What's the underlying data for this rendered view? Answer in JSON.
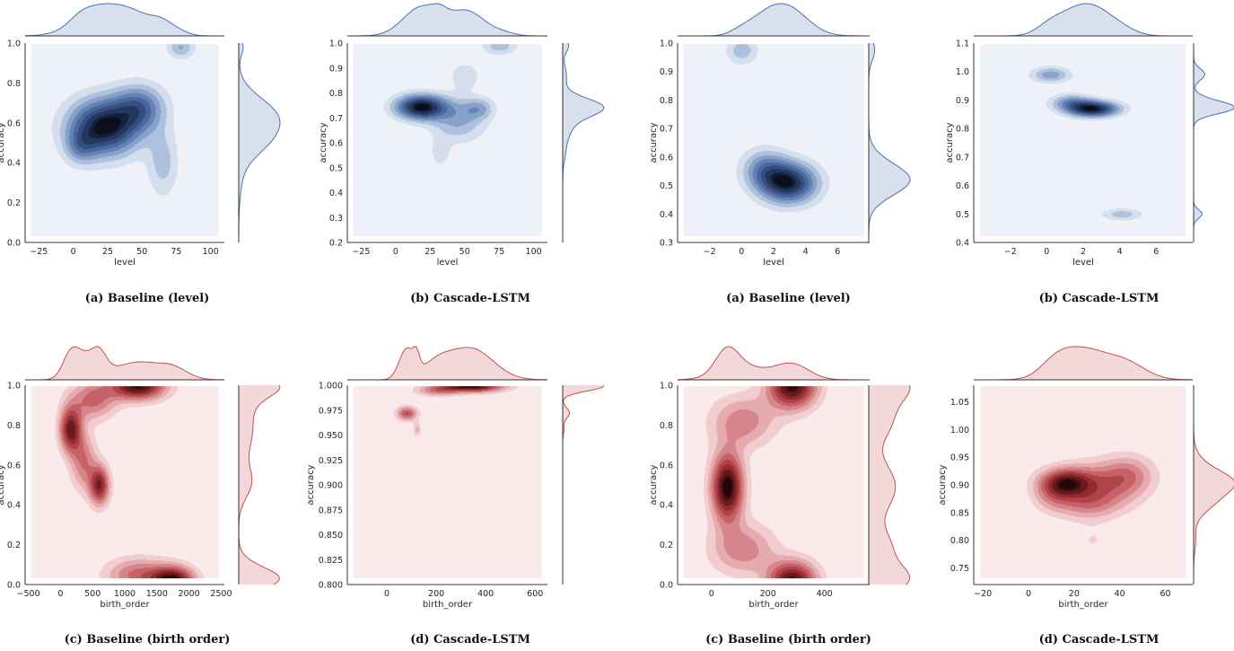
{
  "chart_data": [
    {
      "id": "p1",
      "type": "kde-joint",
      "caption": "(a) Baseline (level)",
      "theme": "blue",
      "xlabel": "level",
      "ylabel": "accuracy",
      "xlim": [
        -35,
        110
      ],
      "ylim": [
        0,
        1.0
      ],
      "xticks": [
        -25,
        0,
        25,
        50,
        75,
        100
      ],
      "yticks": [
        0.0,
        0.2,
        0.4,
        0.6,
        0.8,
        1.0
      ],
      "ydec": 1,
      "blobs": [
        {
          "x": 22,
          "y": 0.58,
          "sx": 18,
          "sy": 0.1,
          "w": 1
        },
        {
          "x": 48,
          "y": 0.68,
          "sx": 13,
          "sy": 0.08,
          "w": 0.55
        },
        {
          "x": 65,
          "y": 0.4,
          "sx": 8,
          "sy": 0.12,
          "w": 0.28
        },
        {
          "x": 78,
          "y": 0.98,
          "sx": 7,
          "sy": 0.04,
          "w": 0.35
        },
        {
          "x": 5,
          "y": 0.48,
          "sx": 8,
          "sy": 0.06,
          "w": 0.3
        }
      ]
    },
    {
      "id": "p2",
      "type": "kde-joint",
      "caption": "(b) Cascade-LSTM",
      "theme": "blue",
      "xlabel": "level",
      "ylabel": "accuracy",
      "xlim": [
        -35,
        110
      ],
      "ylim": [
        0.2,
        1.0
      ],
      "xticks": [
        -25,
        0,
        25,
        50,
        75,
        100
      ],
      "yticks": [
        0.2,
        0.3,
        0.4,
        0.5,
        0.6,
        0.7,
        0.8,
        0.9,
        1.0
      ],
      "ydec": 1,
      "blobs": [
        {
          "x": 18,
          "y": 0.745,
          "sx": 13,
          "sy": 0.035,
          "w": 1
        },
        {
          "x": 45,
          "y": 0.69,
          "sx": 14,
          "sy": 0.06,
          "w": 0.35
        },
        {
          "x": 60,
          "y": 0.74,
          "sx": 8,
          "sy": 0.03,
          "w": 0.3
        },
        {
          "x": 75,
          "y": 0.99,
          "sx": 9,
          "sy": 0.025,
          "w": 0.3
        },
        {
          "x": 50,
          "y": 0.87,
          "sx": 8,
          "sy": 0.04,
          "w": 0.2
        },
        {
          "x": 32,
          "y": 0.56,
          "sx": 5,
          "sy": 0.04,
          "w": 0.18
        }
      ]
    },
    {
      "id": "p3",
      "type": "kde-joint",
      "caption": "(a) Baseline (level)",
      "theme": "blue",
      "xlabel": "level",
      "ylabel": "accuracy",
      "xlim": [
        -4,
        8
      ],
      "ylim": [
        0.3,
        1.0
      ],
      "xticks": [
        -2,
        0,
        2,
        4,
        6
      ],
      "yticks": [
        0.3,
        0.4,
        0.5,
        0.6,
        0.7,
        0.8,
        0.9,
        1.0
      ],
      "ydec": 1,
      "blobs": [
        {
          "x": 2.9,
          "y": 0.51,
          "sx": 1.25,
          "sy": 0.05,
          "w": 1
        },
        {
          "x": 1.4,
          "y": 0.56,
          "sx": 1.0,
          "sy": 0.05,
          "w": 0.45
        },
        {
          "x": 0.0,
          "y": 0.975,
          "sx": 0.7,
          "sy": 0.035,
          "w": 0.32
        }
      ]
    },
    {
      "id": "p4",
      "type": "kde-joint",
      "caption": "(b) Cascade-LSTM",
      "theme": "blue",
      "xlabel": "level",
      "ylabel": "accuracy",
      "xlim": [
        -4,
        8
      ],
      "ylim": [
        0.4,
        1.1
      ],
      "xticks": [
        -2,
        0,
        2,
        4,
        6
      ],
      "yticks": [
        0.4,
        0.5,
        0.6,
        0.7,
        0.8,
        0.9,
        1.0,
        1.1
      ],
      "ydec": 1,
      "blobs": [
        {
          "x": 2.5,
          "y": 0.87,
          "sx": 1.0,
          "sy": 0.02,
          "w": 1
        },
        {
          "x": 1.3,
          "y": 0.895,
          "sx": 0.8,
          "sy": 0.02,
          "w": 0.4
        },
        {
          "x": 0.2,
          "y": 0.99,
          "sx": 0.75,
          "sy": 0.02,
          "w": 0.42
        },
        {
          "x": 4.1,
          "y": 0.5,
          "sx": 0.8,
          "sy": 0.015,
          "w": 0.3
        }
      ]
    },
    {
      "id": "p5",
      "type": "kde-joint",
      "caption": "(c) Baseline (birth order)",
      "theme": "red",
      "xlabel": "birth_order",
      "ylabel": "accuracy",
      "xlim": [
        -550,
        2550
      ],
      "ylim": [
        0,
        1.0
      ],
      "xticks": [
        -500,
        0,
        500,
        1000,
        1500,
        2000,
        2500
      ],
      "yticks": [
        0.0,
        0.2,
        0.4,
        0.6,
        0.8,
        1.0
      ],
      "ydec": 1,
      "blobs": [
        {
          "x": 1200,
          "y": 1.0,
          "sx": 300,
          "sy": 0.05,
          "w": 1
        },
        {
          "x": 1750,
          "y": 0.02,
          "sx": 230,
          "sy": 0.05,
          "w": 0.95
        },
        {
          "x": 150,
          "y": 0.78,
          "sx": 120,
          "sy": 0.08,
          "w": 0.85
        },
        {
          "x": 600,
          "y": 0.5,
          "sx": 110,
          "sy": 0.07,
          "w": 0.8
        },
        {
          "x": 500,
          "y": 0.93,
          "sx": 250,
          "sy": 0.07,
          "w": 0.5
        },
        {
          "x": 1200,
          "y": 0.05,
          "sx": 350,
          "sy": 0.06,
          "w": 0.5
        },
        {
          "x": 350,
          "y": 0.62,
          "sx": 140,
          "sy": 0.1,
          "w": 0.45
        }
      ]
    },
    {
      "id": "p6",
      "type": "kde-joint",
      "caption": "(d) Cascade-LSTM",
      "theme": "red",
      "xlabel": "birth_order",
      "ylabel": "accuracy",
      "xlim": [
        -160,
        650
      ],
      "ylim": [
        0.8,
        1.0
      ],
      "xticks": [
        0,
        200,
        400,
        600
      ],
      "yticks": [
        0.8,
        0.825,
        0.85,
        0.875,
        0.9,
        0.925,
        0.95,
        0.975,
        1.0
      ],
      "ydec": 3,
      "blobs": [
        {
          "x": 340,
          "y": 1.0,
          "sx": 90,
          "sy": 0.0045,
          "w": 1
        },
        {
          "x": 80,
          "y": 0.972,
          "sx": 30,
          "sy": 0.005,
          "w": 0.55
        },
        {
          "x": 120,
          "y": 0.956,
          "sx": 12,
          "sy": 0.005,
          "w": 0.25
        },
        {
          "x": 200,
          "y": 0.995,
          "sx": 60,
          "sy": 0.004,
          "w": 0.35
        }
      ]
    },
    {
      "id": "p7",
      "type": "kde-joint",
      "caption": "(c) Baseline (birth order)",
      "theme": "red",
      "xlabel": "birth_order",
      "ylabel": "accuracy",
      "xlim": [
        -120,
        560
      ],
      "ylim": [
        0,
        1.0
      ],
      "xticks": [
        0,
        200,
        400
      ],
      "yticks": [
        0.0,
        0.2,
        0.4,
        0.6,
        0.8,
        1.0
      ],
      "ydec": 1,
      "blobs": [
        {
          "x": 55,
          "y": 0.49,
          "sx": 40,
          "sy": 0.12,
          "w": 1
        },
        {
          "x": 285,
          "y": 1.0,
          "sx": 60,
          "sy": 0.08,
          "w": 0.95
        },
        {
          "x": 285,
          "y": 0.02,
          "sx": 60,
          "sy": 0.07,
          "w": 0.9
        },
        {
          "x": 110,
          "y": 0.82,
          "sx": 80,
          "sy": 0.09,
          "w": 0.4
        },
        {
          "x": 110,
          "y": 0.18,
          "sx": 80,
          "sy": 0.09,
          "w": 0.4
        }
      ]
    },
    {
      "id": "p8",
      "type": "kde-joint",
      "caption": "(d) Cascade-LSTM",
      "theme": "red",
      "xlabel": "birth_order",
      "ylabel": "accuracy",
      "xlim": [
        -24,
        72
      ],
      "ylim": [
        0.72,
        1.08
      ],
      "xticks": [
        -20,
        0,
        20,
        40,
        60
      ],
      "yticks": [
        0.75,
        0.8,
        0.85,
        0.9,
        0.95,
        1.0,
        1.05
      ],
      "ydec": 2,
      "blobs": [
        {
          "x": 16,
          "y": 0.905,
          "sx": 8,
          "sy": 0.018,
          "w": 1
        },
        {
          "x": 32,
          "y": 0.9,
          "sx": 12,
          "sy": 0.03,
          "w": 0.55
        },
        {
          "x": 44,
          "y": 0.92,
          "sx": 8,
          "sy": 0.025,
          "w": 0.4
        },
        {
          "x": 25,
          "y": 0.865,
          "sx": 10,
          "sy": 0.02,
          "w": 0.4
        },
        {
          "x": 10,
          "y": 0.88,
          "sx": 6,
          "sy": 0.02,
          "w": 0.3
        },
        {
          "x": 28,
          "y": 0.8,
          "sx": 6,
          "sy": 0.02,
          "w": 0.15
        }
      ]
    }
  ]
}
